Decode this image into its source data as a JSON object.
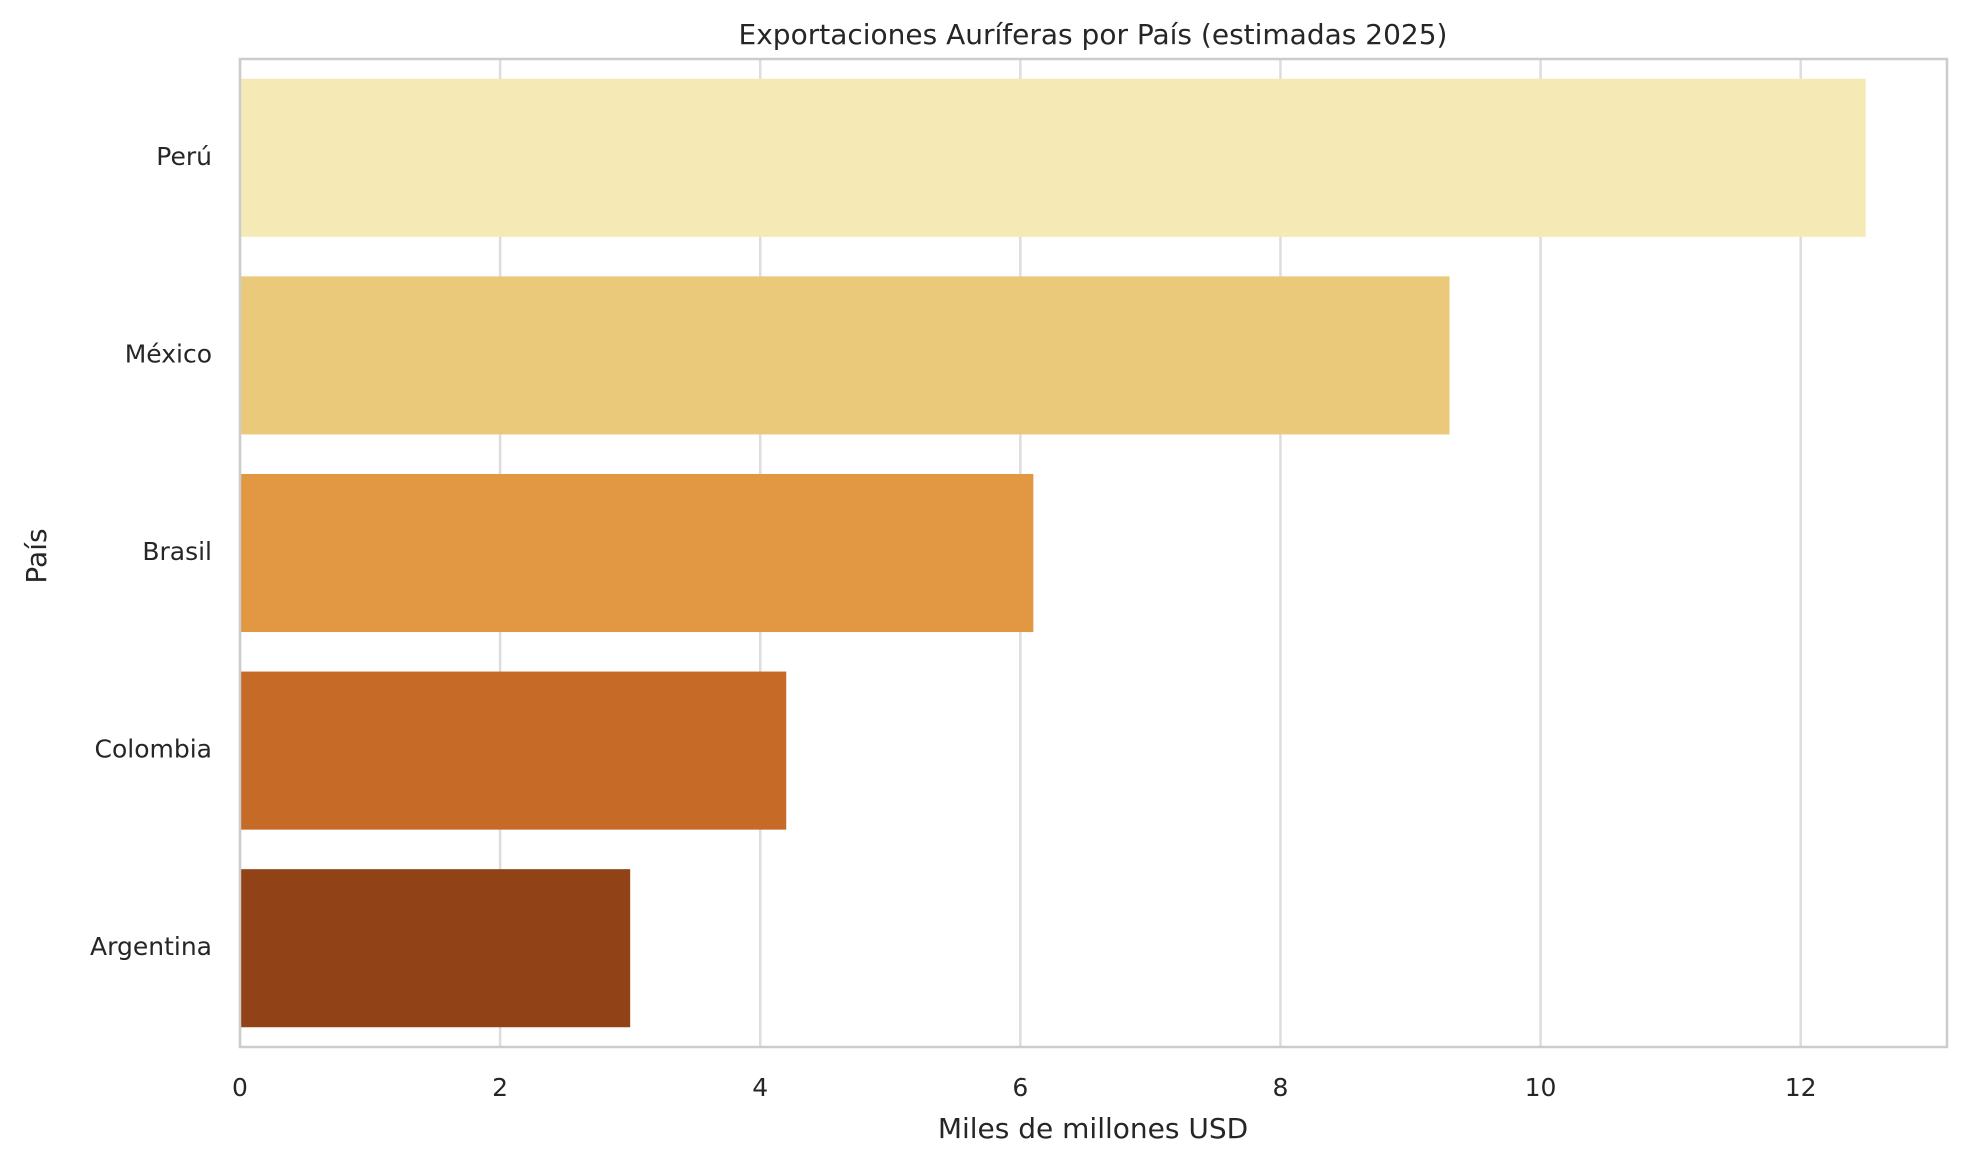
{
  "chart_data": {
    "type": "barh",
    "title": "Exportaciones Auríferas por País (estimadas 2025)",
    "xlabel": "Miles de millones USD",
    "ylabel": "País",
    "categories": [
      "Perú",
      "México",
      "Brasil",
      "Colombia",
      "Argentina"
    ],
    "values": [
      12.5,
      9.3,
      6.1,
      4.2,
      3.0
    ],
    "colors": [
      "#f5eab5",
      "#ebc97a",
      "#e29743",
      "#c66a27",
      "#914217"
    ],
    "xlim": [
      0,
      13.125
    ],
    "xticks": [
      0,
      2,
      4,
      6,
      8,
      10,
      12
    ],
    "grid": true
  }
}
